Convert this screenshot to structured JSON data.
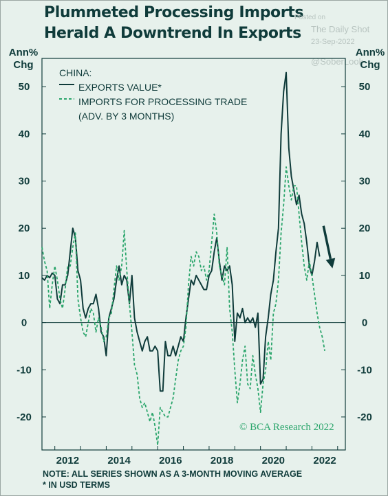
{
  "title": "Plummeted Processing Imports Herald A Downtrend In Exports",
  "watermark": {
    "posted_on": "Posted on",
    "source": "The Daily Shot",
    "date": "23-Sep-2022",
    "handle": "@SoberLook"
  },
  "credit": "© BCA Research 2022",
  "note_lines": [
    "NOTE: ALL SERIES SHOWN AS A 3-MONTH MOVING AVERAGE",
    "* IN USD TERMS"
  ],
  "colors": {
    "exports": "#0f3b3a",
    "imports": "#2aa56b",
    "background": "#e7f1ec",
    "arrow": "#0f3b3a"
  },
  "chart_data": {
    "type": "line",
    "title": "Plummeted Processing Imports Herald A Downtrend In Exports",
    "ylabel_left": "Ann% Chg",
    "ylabel_right": "Ann% Chg",
    "legend_header": "CHINA:",
    "legend_position": "top-left",
    "ylim": [
      -27,
      56
    ],
    "xlim": [
      2011.5,
      2023.3
    ],
    "y_ticks": [
      "-20",
      "-10",
      "0",
      "10",
      "20",
      "30",
      "40",
      "50"
    ],
    "x_ticks": [
      "2012",
      "2014",
      "2016",
      "2018",
      "2020",
      "2022"
    ],
    "grid": false,
    "zero_line": true,
    "series": [
      {
        "name": "EXPORTS VALUE*",
        "style": "solid",
        "points": [
          [
            2011.5,
            9.5
          ],
          [
            2011.6,
            9
          ],
          [
            2011.7,
            10
          ],
          [
            2011.8,
            9.5
          ],
          [
            2011.9,
            10.5
          ],
          [
            2012.0,
            10
          ],
          [
            2012.1,
            5
          ],
          [
            2012.2,
            4
          ],
          [
            2012.3,
            8
          ],
          [
            2012.4,
            8
          ],
          [
            2012.5,
            10
          ],
          [
            2012.6,
            15
          ],
          [
            2012.7,
            20
          ],
          [
            2012.8,
            18
          ],
          [
            2012.9,
            11
          ],
          [
            2013.0,
            9
          ],
          [
            2013.1,
            3
          ],
          [
            2013.2,
            1
          ],
          [
            2013.3,
            3
          ],
          [
            2013.4,
            4
          ],
          [
            2013.5,
            4
          ],
          [
            2013.6,
            6
          ],
          [
            2013.7,
            3
          ],
          [
            2013.8,
            -2
          ],
          [
            2013.9,
            -3
          ],
          [
            2014.0,
            -7
          ],
          [
            2014.1,
            1
          ],
          [
            2014.2,
            3
          ],
          [
            2014.3,
            5
          ],
          [
            2014.4,
            9
          ],
          [
            2014.5,
            12
          ],
          [
            2014.6,
            8
          ],
          [
            2014.7,
            10
          ],
          [
            2014.8,
            9
          ],
          [
            2014.9,
            4
          ],
          [
            2015.0,
            10
          ],
          [
            2015.1,
            1
          ],
          [
            2015.2,
            -2
          ],
          [
            2015.3,
            -4
          ],
          [
            2015.4,
            -6
          ],
          [
            2015.5,
            -4
          ],
          [
            2015.6,
            -3
          ],
          [
            2015.7,
            -6
          ],
          [
            2015.8,
            -6
          ],
          [
            2015.9,
            -5
          ],
          [
            2016.0,
            -6
          ],
          [
            2016.1,
            -14.5
          ],
          [
            2016.2,
            -14.5
          ],
          [
            2016.3,
            -4
          ],
          [
            2016.4,
            -7
          ],
          [
            2016.5,
            -7
          ],
          [
            2016.6,
            -5
          ],
          [
            2016.7,
            -7
          ],
          [
            2016.8,
            -5
          ],
          [
            2016.9,
            -3
          ],
          [
            2017.0,
            -4
          ],
          [
            2017.1,
            1
          ],
          [
            2017.2,
            5
          ],
          [
            2017.3,
            9
          ],
          [
            2017.4,
            8
          ],
          [
            2017.5,
            10
          ],
          [
            2017.6,
            9
          ],
          [
            2017.7,
            8
          ],
          [
            2017.8,
            7
          ],
          [
            2017.9,
            7
          ],
          [
            2018.0,
            10
          ],
          [
            2018.1,
            11
          ],
          [
            2018.2,
            15
          ],
          [
            2018.3,
            18
          ],
          [
            2018.4,
            13
          ],
          [
            2018.5,
            9
          ],
          [
            2018.6,
            12
          ],
          [
            2018.7,
            11
          ],
          [
            2018.8,
            12
          ],
          [
            2018.9,
            8
          ],
          [
            2019.0,
            -4
          ],
          [
            2019.1,
            2
          ],
          [
            2019.2,
            1
          ],
          [
            2019.3,
            3
          ],
          [
            2019.4,
            0
          ],
          [
            2019.5,
            1
          ],
          [
            2019.6,
            0
          ],
          [
            2019.7,
            1
          ],
          [
            2019.8,
            -1
          ],
          [
            2019.9,
            2
          ],
          [
            2020.0,
            -13
          ],
          [
            2020.1,
            -12
          ],
          [
            2020.2,
            -3
          ],
          [
            2020.3,
            1
          ],
          [
            2020.4,
            6
          ],
          [
            2020.5,
            9
          ],
          [
            2020.6,
            15
          ],
          [
            2020.7,
            20
          ],
          [
            2020.8,
            40
          ],
          [
            2020.9,
            49
          ],
          [
            2021.0,
            53
          ],
          [
            2021.1,
            37
          ],
          [
            2021.2,
            31
          ],
          [
            2021.3,
            28
          ],
          [
            2021.4,
            25
          ],
          [
            2021.5,
            27
          ],
          [
            2021.6,
            23
          ],
          [
            2021.7,
            21
          ],
          [
            2021.8,
            17
          ],
          [
            2021.9,
            12
          ],
          [
            2022.0,
            10
          ],
          [
            2022.1,
            13
          ],
          [
            2022.2,
            17
          ],
          [
            2022.3,
            14
          ]
        ]
      },
      {
        "name": "IMPORTS FOR PROCESSING TRADE",
        "name_line2": "(ADV. BY 3 MONTHS)",
        "style": "dashed",
        "points": [
          [
            2011.5,
            16
          ],
          [
            2011.6,
            13
          ],
          [
            2011.7,
            11
          ],
          [
            2011.8,
            3
          ],
          [
            2011.9,
            8
          ],
          [
            2012.0,
            12
          ],
          [
            2012.1,
            9
          ],
          [
            2012.2,
            5
          ],
          [
            2012.3,
            3
          ],
          [
            2012.4,
            7
          ],
          [
            2012.5,
            12
          ],
          [
            2012.6,
            12
          ],
          [
            2012.7,
            16
          ],
          [
            2012.8,
            19
          ],
          [
            2012.9,
            5
          ],
          [
            2013.0,
            1
          ],
          [
            2013.1,
            -2
          ],
          [
            2013.2,
            -3
          ],
          [
            2013.3,
            0
          ],
          [
            2013.4,
            3
          ],
          [
            2013.5,
            2
          ],
          [
            2013.6,
            -2
          ],
          [
            2013.7,
            1
          ],
          [
            2013.8,
            -1
          ],
          [
            2013.9,
            -4
          ],
          [
            2014.0,
            -3
          ],
          [
            2014.1,
            1
          ],
          [
            2014.2,
            2
          ],
          [
            2014.3,
            7
          ],
          [
            2014.4,
            12
          ],
          [
            2014.5,
            9
          ],
          [
            2014.6,
            12
          ],
          [
            2014.7,
            19.5
          ],
          [
            2014.8,
            11
          ],
          [
            2014.9,
            4
          ],
          [
            2015.0,
            -2
          ],
          [
            2015.1,
            -9
          ],
          [
            2015.2,
            -11
          ],
          [
            2015.3,
            -16
          ],
          [
            2015.4,
            -18
          ],
          [
            2015.5,
            -17
          ],
          [
            2015.6,
            -19
          ],
          [
            2015.7,
            -21
          ],
          [
            2015.8,
            -19
          ],
          [
            2015.9,
            -22
          ],
          [
            2016.0,
            -26
          ],
          [
            2016.1,
            -18
          ],
          [
            2016.2,
            -19
          ],
          [
            2016.3,
            -20
          ],
          [
            2016.4,
            -20
          ],
          [
            2016.5,
            -18
          ],
          [
            2016.6,
            -16
          ],
          [
            2016.7,
            -12
          ],
          [
            2016.8,
            -8
          ],
          [
            2016.9,
            -6
          ],
          [
            2017.0,
            -5
          ],
          [
            2017.1,
            -1
          ],
          [
            2017.2,
            8
          ],
          [
            2017.3,
            14
          ],
          [
            2017.4,
            12
          ],
          [
            2017.5,
            15
          ],
          [
            2017.6,
            14
          ],
          [
            2017.7,
            11
          ],
          [
            2017.8,
            12
          ],
          [
            2017.9,
            9
          ],
          [
            2018.0,
            11
          ],
          [
            2018.1,
            17
          ],
          [
            2018.2,
            23
          ],
          [
            2018.3,
            19
          ],
          [
            2018.4,
            12
          ],
          [
            2018.5,
            10
          ],
          [
            2018.6,
            8
          ],
          [
            2018.7,
            16
          ],
          [
            2018.8,
            3
          ],
          [
            2018.9,
            -2
          ],
          [
            2019.0,
            -10
          ],
          [
            2019.1,
            -17
          ],
          [
            2019.2,
            -13
          ],
          [
            2019.3,
            -8
          ],
          [
            2019.4,
            -5
          ],
          [
            2019.5,
            -13
          ],
          [
            2019.6,
            -14
          ],
          [
            2019.7,
            -7
          ],
          [
            2019.8,
            -11
          ],
          [
            2019.9,
            -14
          ],
          [
            2020.0,
            -19
          ],
          [
            2020.1,
            -13
          ],
          [
            2020.2,
            -10
          ],
          [
            2020.3,
            -4
          ],
          [
            2020.4,
            -8
          ],
          [
            2020.5,
            2
          ],
          [
            2020.6,
            4
          ],
          [
            2020.7,
            9
          ],
          [
            2020.8,
            19
          ],
          [
            2020.9,
            25
          ],
          [
            2021.0,
            33
          ],
          [
            2021.1,
            29
          ],
          [
            2021.2,
            26
          ],
          [
            2021.3,
            29
          ],
          [
            2021.4,
            29
          ],
          [
            2021.5,
            23
          ],
          [
            2021.6,
            17
          ],
          [
            2021.7,
            12
          ],
          [
            2021.8,
            9
          ],
          [
            2021.9,
            13
          ],
          [
            2022.0,
            10
          ],
          [
            2022.1,
            6
          ],
          [
            2022.2,
            2
          ],
          [
            2022.3,
            -1
          ],
          [
            2022.4,
            -3
          ],
          [
            2022.5,
            -6
          ]
        ]
      }
    ],
    "arrow": {
      "from": [
        2022.45,
        20.5
      ],
      "to": [
        2022.8,
        11.5
      ]
    }
  }
}
